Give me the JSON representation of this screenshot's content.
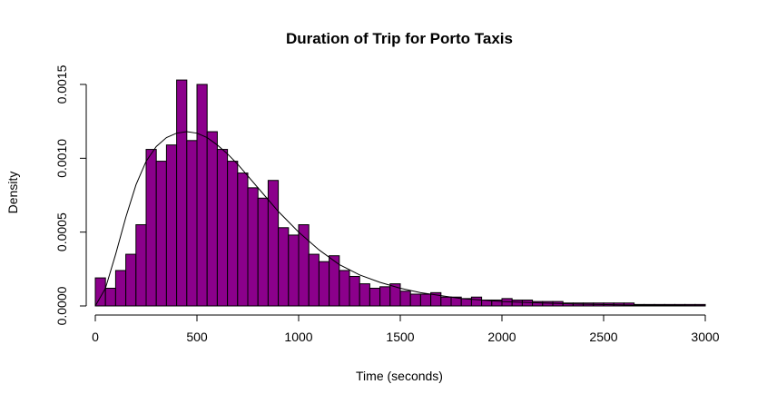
{
  "chart_data": {
    "type": "bar",
    "title": "Duration of Trip for Porto Taxis",
    "xlabel": "Time (seconds)",
    "ylabel": "Density",
    "xlim": [
      0,
      3000
    ],
    "ylim": [
      0,
      0.0015
    ],
    "x_ticks": [
      0,
      500,
      1000,
      1500,
      2000,
      2500,
      3000
    ],
    "x_tick_labels": [
      "0",
      "500",
      "1000",
      "1500",
      "2000",
      "2500",
      "3000"
    ],
    "y_ticks": [
      0,
      0.0005,
      0.001,
      0.0015
    ],
    "y_tick_labels": [
      "0.0000",
      "0.0005",
      "0.0010",
      "0.0015"
    ],
    "bin_width": 50,
    "bin_start": 0,
    "values": [
      0.00019,
      0.00012,
      0.00024,
      0.00035,
      0.00055,
      0.00106,
      0.00098,
      0.00109,
      0.00153,
      0.00112,
      0.0015,
      0.00118,
      0.00106,
      0.00098,
      0.0009,
      0.0008,
      0.00073,
      0.00085,
      0.00053,
      0.00048,
      0.00055,
      0.00035,
      0.0003,
      0.00034,
      0.00024,
      0.0002,
      0.00015,
      0.00012,
      0.00013,
      0.00015,
      0.0001,
      8e-05,
      8e-05,
      9e-05,
      6e-05,
      6e-05,
      5e-05,
      6e-05,
      4e-05,
      4e-05,
      5e-05,
      4e-05,
      4e-05,
      3e-05,
      3e-05,
      3e-05,
      2e-05,
      2e-05,
      2e-05,
      2e-05,
      2e-05,
      2e-05,
      2e-05,
      1e-05,
      1e-05,
      1e-05,
      1e-05,
      1e-05,
      1e-05,
      1e-05
    ],
    "bar_color": "#8b008b",
    "curve": {
      "x": [
        0,
        50,
        100,
        150,
        200,
        250,
        300,
        350,
        400,
        450,
        500,
        550,
        600,
        650,
        700,
        750,
        800,
        850,
        900,
        950,
        1000,
        1100,
        1200,
        1300,
        1400,
        1500,
        1600,
        1700,
        1800,
        1900,
        2000,
        2200,
        2400,
        2600,
        2800,
        3000
      ],
      "y": [
        0.0,
        0.00012,
        0.00035,
        0.0006,
        0.00082,
        0.00098,
        0.00108,
        0.00114,
        0.00117,
        0.00118,
        0.00117,
        0.00114,
        0.00109,
        0.00103,
        0.00096,
        0.00088,
        0.0008,
        0.00072,
        0.00064,
        0.00057,
        0.0005,
        0.00038,
        0.00028,
        0.00021,
        0.00016,
        0.00012,
        9e-05,
        7e-05,
        5e-05,
        4e-05,
        3e-05,
        2e-05,
        1.2e-05,
        7e-06,
        4e-06,
        2e-06
      ]
    },
    "grid": false,
    "legend": "none"
  }
}
